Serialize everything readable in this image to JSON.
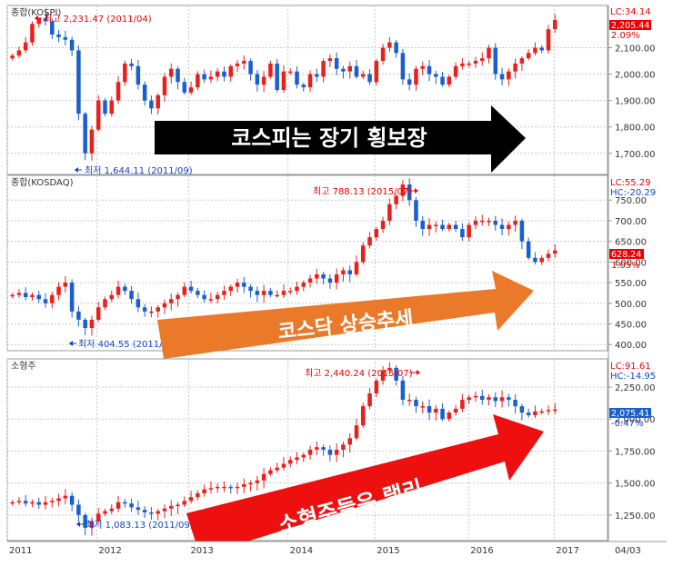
{
  "chart_data": [
    {
      "type": "candlestick",
      "name_label": "종합(KOSPI)",
      "lc_label": "LC:34.14",
      "badge_value": "2,205.44",
      "badge_pct": "2.09%",
      "high_label": "최고 2,231.47 (2011/04)",
      "low_label": "최저 1,644.11 (2011/09)",
      "banner": "코스피는 장기 횡보장",
      "banner_color": "#000000",
      "ylim": [
        1620,
        2260
      ],
      "yticks": [
        {
          "v": 2100,
          "t": "2,100.00"
        },
        {
          "v": 2000,
          "t": "2,000.00"
        },
        {
          "v": 1900,
          "t": "1,900.00"
        },
        {
          "v": 1800,
          "t": "1,800.00"
        },
        {
          "v": 1700,
          "t": "1,700.00"
        }
      ],
      "closes": [
        2070,
        2090,
        2120,
        2190,
        2231,
        2200,
        2150,
        2140,
        2130,
        2090,
        1850,
        1700,
        1790,
        1900,
        1850,
        1900,
        1970,
        2040,
        2030,
        1960,
        1900,
        1870,
        1920,
        1990,
        2020,
        1970,
        1930,
        1950,
        2000,
        1980,
        1990,
        2010,
        1990,
        2030,
        2040,
        2050,
        2000,
        1960,
        1990,
        2040,
        1940,
        2010,
        2010,
        1960,
        1950,
        2000,
        1990,
        2050,
        2060,
        2020,
        2010,
        2030,
        1990,
        2000,
        1970,
        2050,
        2100,
        2120,
        2080,
        1980,
        1960,
        2020,
        2030,
        2000,
        1990,
        1960,
        1990,
        2030,
        2040,
        2040,
        2050,
        2060,
        2100,
        2000,
        1980,
        2010,
        2040,
        2060,
        2080,
        2100,
        2090,
        2170,
        2205
      ]
    },
    {
      "type": "candlestick",
      "name_label": "종합(KOSDAQ)",
      "lc_label": "LC:55.29",
      "hc_label": "HC:-20.29",
      "badge_value": "628.24",
      "badge_pct": "1.05%",
      "high_label": "최고 788.13 (2015/07)",
      "low_label": "최저 404.55 (2011/08)",
      "banner": "코스닥 상승추세",
      "banner_color": "#ea7a2a",
      "ylim": [
        385,
        810
      ],
      "yticks": [
        {
          "v": 750,
          "t": "750.00"
        },
        {
          "v": 700,
          "t": "700.00"
        },
        {
          "v": 650,
          "t": "650.00"
        },
        {
          "v": 600,
          "t": "600.00"
        },
        {
          "v": 550,
          "t": "550.00"
        },
        {
          "v": 500,
          "t": "500.00"
        },
        {
          "v": 450,
          "t": "450.00"
        },
        {
          "v": 400,
          "t": "400.00"
        }
      ],
      "closes": [
        520,
        525,
        515,
        520,
        510,
        500,
        520,
        540,
        550,
        480,
        460,
        440,
        460,
        490,
        510,
        520,
        540,
        530,
        510,
        490,
        480,
        480,
        490,
        500,
        510,
        520,
        540,
        530,
        520,
        510,
        510,
        520,
        530,
        540,
        550,
        540,
        530,
        520,
        530,
        520,
        520,
        530,
        530,
        540,
        550,
        560,
        570,
        560,
        550,
        570,
        580,
        570,
        600,
        640,
        660,
        680,
        700,
        740,
        760,
        788,
        750,
        700,
        680,
        690,
        690,
        680,
        690,
        680,
        660,
        690,
        700,
        700,
        700,
        690,
        680,
        690,
        700,
        650,
        610,
        600,
        610,
        620,
        628
      ]
    },
    {
      "type": "candlestick",
      "name_label": "소형주",
      "lc_label": "LC:91.61",
      "hc_label": "HC:-14.95",
      "badge_value": "2,075.41",
      "badge_pct": "-0.47%",
      "high_label": "최고 2,440.24 (2015/07)",
      "low_label": "최저 1,083.13 (2011/09)",
      "banner": "소형주들은 랠리",
      "banner_color": "#ee1111",
      "ylim": [
        1050,
        2470
      ],
      "yticks": [
        {
          "v": 2250,
          "t": "2,250.00"
        },
        {
          "v": 2000,
          "t": "2,000.00"
        },
        {
          "v": 1750,
          "t": "1,750.00"
        },
        {
          "v": 1500,
          "t": "1,500.00"
        },
        {
          "v": 1250,
          "t": "1,250.00"
        }
      ],
      "closes": [
        1350,
        1360,
        1340,
        1350,
        1330,
        1350,
        1360,
        1380,
        1400,
        1330,
        1250,
        1150,
        1200,
        1260,
        1280,
        1300,
        1350,
        1340,
        1310,
        1290,
        1270,
        1260,
        1280,
        1300,
        1320,
        1330,
        1360,
        1390,
        1420,
        1450,
        1460,
        1470,
        1470,
        1460,
        1470,
        1490,
        1500,
        1520,
        1570,
        1600,
        1620,
        1650,
        1680,
        1700,
        1720,
        1760,
        1780,
        1760,
        1720,
        1760,
        1800,
        1850,
        1950,
        2100,
        2200,
        2300,
        2380,
        2400,
        2300,
        2150,
        2150,
        2100,
        2100,
        2050,
        2080,
        2000,
        2050,
        2080,
        2150,
        2170,
        2180,
        2150,
        2170,
        2140,
        2170,
        2150,
        2100,
        2050,
        2030,
        2060,
        2060,
        2070,
        2075
      ]
    }
  ],
  "x_axis": {
    "labels": [
      "2011",
      "2012",
      "2013",
      "2014",
      "2015",
      "2016",
      "2017"
    ],
    "positions": [
      0.0,
      0.1491,
      0.3022,
      0.4677,
      0.6125,
      0.7686,
      0.9112
    ],
    "end_label": "04/03"
  }
}
